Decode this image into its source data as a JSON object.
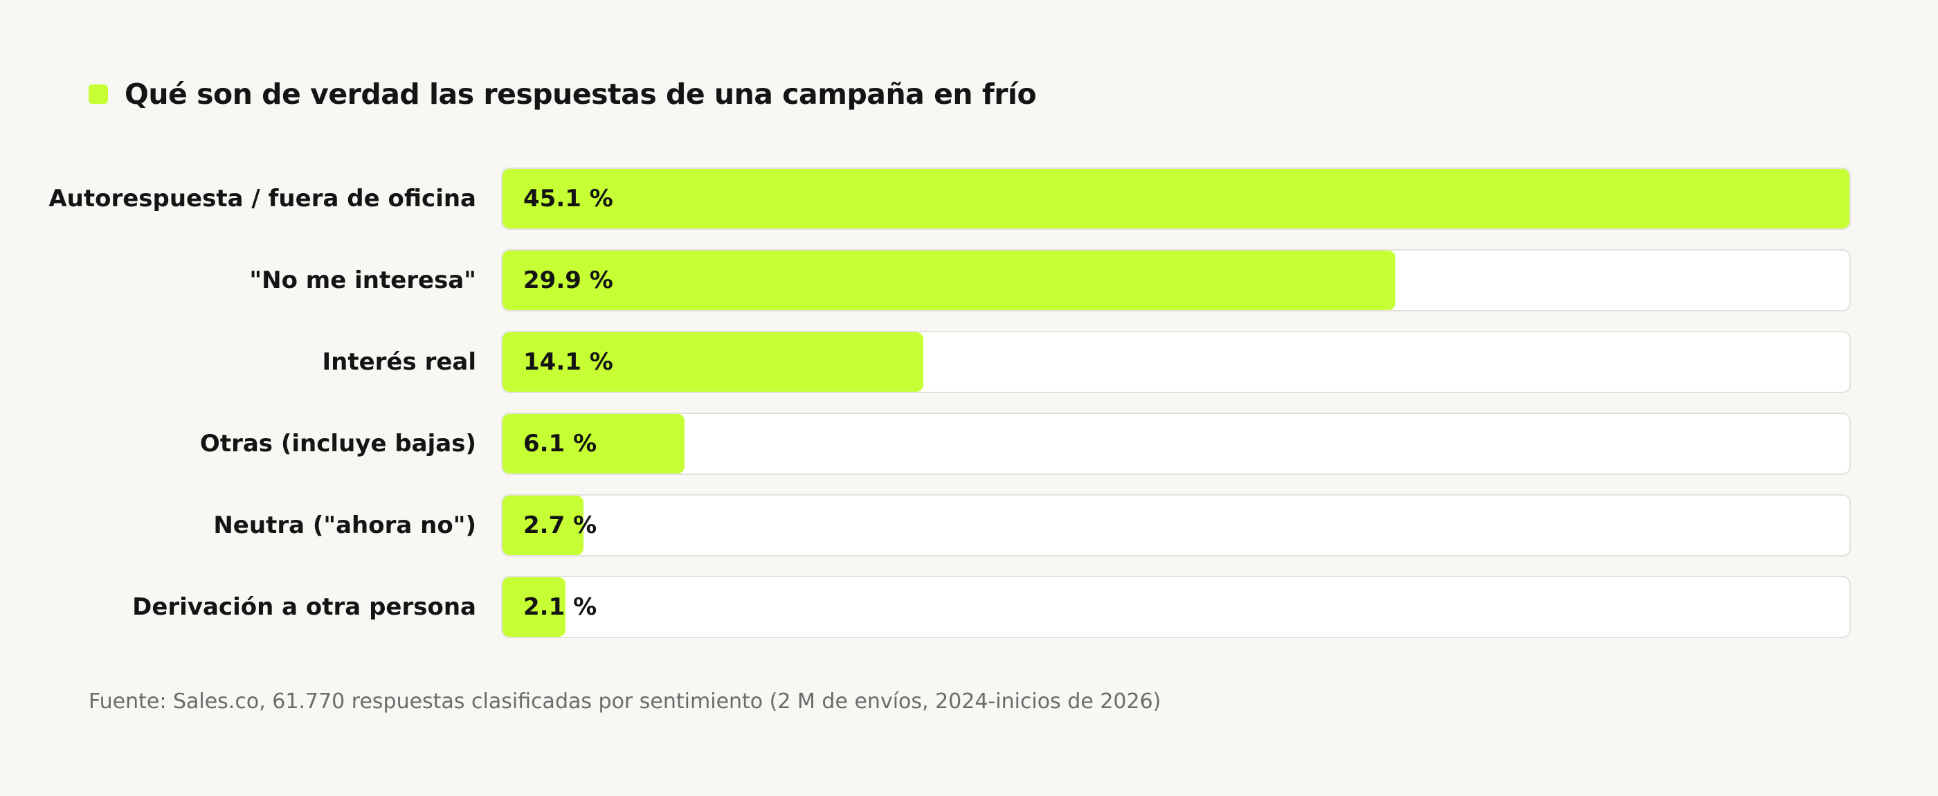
{
  "colors": {
    "accent": "#c5ff34",
    "background": "#f8f7f3",
    "track": "#ffffff",
    "track_border": "#e2e1dc",
    "source_text": "#6b6b6b"
  },
  "chart_data": {
    "type": "bar",
    "orientation": "horizontal",
    "title": "Qué son de verdad las respuestas de una campaña en frío",
    "categories": [
      "Autorespuesta / fuera de oficina",
      "\"No me interesa\"",
      "Interés real",
      "Otras (incluye bajas)",
      "Neutra (\"ahora no\")",
      "Derivación a otra persona"
    ],
    "values": [
      45.1,
      29.9,
      14.1,
      6.1,
      2.7,
      2.1
    ],
    "value_labels": [
      "45.1 %",
      "29.9 %",
      "14.1 %",
      "6.1 %",
      "2.7 %",
      "2.1 %"
    ],
    "xlim": [
      0,
      45.1
    ],
    "grid": false,
    "source": "Fuente: Sales.co, 61.770 respuestas clasificadas por sentimiento (2 M de envíos, 2024-inicios de 2026)"
  }
}
